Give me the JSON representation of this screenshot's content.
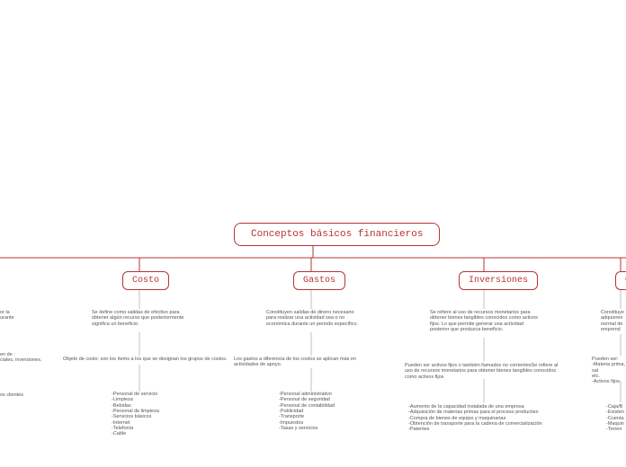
{
  "root": {
    "label": "Conceptos básicos financieros"
  },
  "branches": {
    "costo": {
      "label": "Costo",
      "def": "Se define como salidas de efectivo para obtener algún recurso que posteriormente significa un beneficio.",
      "sub1": "Objeto de costo: son los ítems a los que se designan los grupos de costos.",
      "left_frag1": "or la\nurante",
      "left_frag2": "en de :\nciales, inversiones.",
      "left_frag3": "os clientes",
      "items": [
        "-Personal de servicio",
        "-Limpieza",
        "-Bebidas",
        "-Personal de limpieza",
        "-Servicios básicos",
        "-Internet",
        "-Telefonía",
        "-Cable"
      ]
    },
    "gastos": {
      "label": "Gastos",
      "def": "Constituyen salidas de dinero necesario para realizar una actividad sea o no económica durante un periodo específico.",
      "sub1": "Los gastos a diferencia de los costos se aplican más en actividades de apoyo.",
      "items": [
        "-Personal administrativo",
        "-Personal de seguridad",
        "-Personal de contabilidad",
        "-Publicidad",
        "-Transporte",
        "-Impuestos",
        "-Tasas y servicios"
      ]
    },
    "inversiones": {
      "label": "Inversiones",
      "def": "Se refiere al uso de recursos monetarios para obtener bienes tangibles conocidos como activos fijos. Lo que permite generar una actividad posterior que produzca beneficio.",
      "sub1": "Pueden ser activos fijos o también llamados no corrientesSe refiere al uso de recursos monetarios para obtener bienes tangibles conocidos como activos fijos",
      "items": [
        "-Aumento de la capacidad instalada de una empresa",
        "-Adquisición de materias primas para el proceso productivo",
        "-Compra de bienes de equipo y maquinarias",
        "-Obtención de transporte para la cadena de comercialización",
        "-Patentes"
      ]
    },
    "cut": {
      "label": "C",
      "def": "Constituye\nadquieren\nnormal de\nemprend",
      "sub1": "Pueden ser:\n-Materia prima, sal\netc.\n-Activos fijos",
      "items": [
        "-Caja/B",
        "-Existen",
        "-Cuenta",
        "-Maquin",
        "-Terren"
      ]
    }
  },
  "colors": {
    "accent": "#b33",
    "text": "#555",
    "bg": "#ffffff"
  }
}
